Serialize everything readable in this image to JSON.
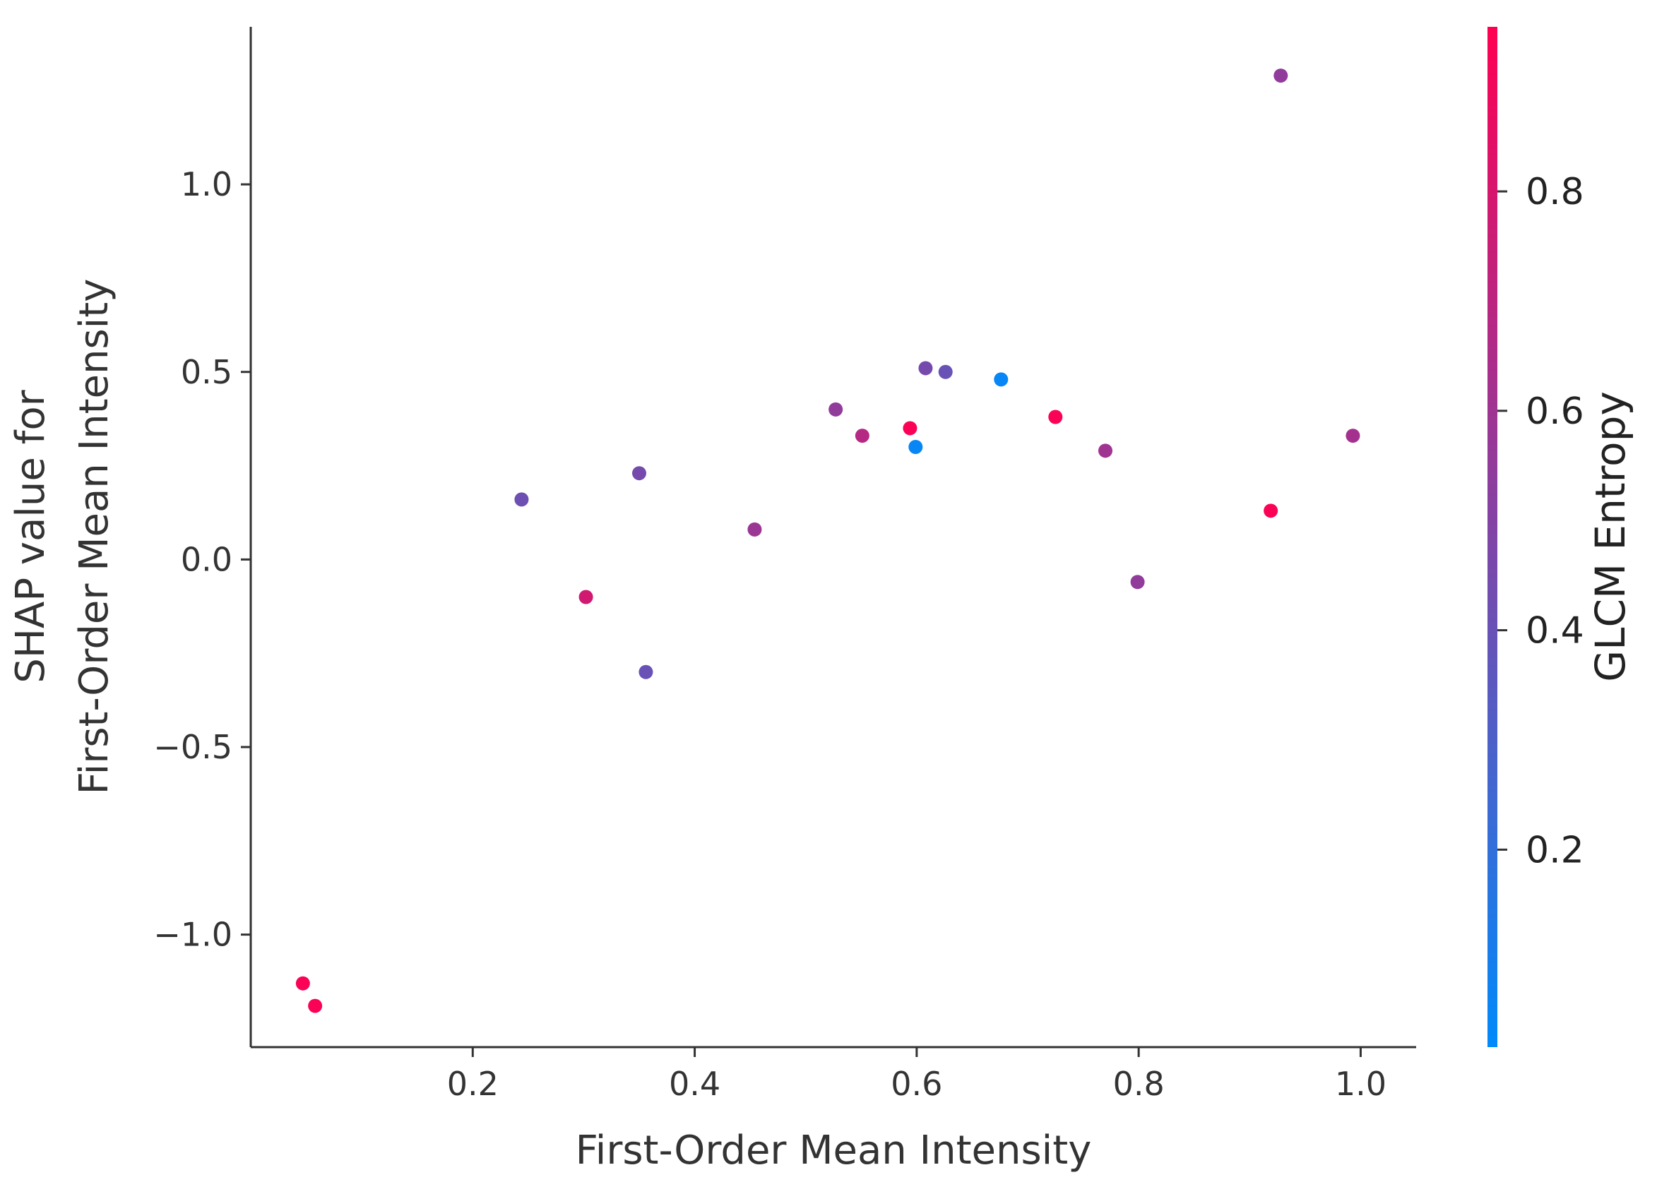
{
  "chart_data": {
    "type": "scatter",
    "xlabel": "First-Order Mean Intensity",
    "ylabel_lines": [
      "SHAP value for",
      "First-Order Mean Intensity"
    ],
    "colorbar_label": "GLCM Entropy",
    "xlim": [
      0.0,
      1.05
    ],
    "ylim": [
      -1.3,
      1.42
    ],
    "x_ticks": [
      0.2,
      0.4,
      0.6,
      0.8,
      1.0
    ],
    "x_tick_labels": [
      "0.2",
      "0.4",
      "0.6",
      "0.8",
      "1.0"
    ],
    "y_ticks": [
      -1.0,
      -0.5,
      0.0,
      0.5,
      1.0
    ],
    "y_tick_labels": [
      "−1.0",
      "−0.5",
      "0.0",
      "0.5",
      "1.0"
    ],
    "color_range": [
      0.02,
      0.95
    ],
    "color_ticks": [
      0.2,
      0.4,
      0.6,
      0.8
    ],
    "color_tick_labels": [
      "0.2",
      "0.4",
      "0.6",
      "0.8"
    ],
    "colormap": [
      "#008afb",
      "#ff0052"
    ],
    "grid": false,
    "points": [
      {
        "x": 0.047,
        "y": -1.13,
        "c": 0.93
      },
      {
        "x": 0.058,
        "y": -1.19,
        "c": 0.93
      },
      {
        "x": 0.244,
        "y": 0.16,
        "c": 0.42
      },
      {
        "x": 0.302,
        "y": -0.1,
        "c": 0.78
      },
      {
        "x": 0.35,
        "y": 0.23,
        "c": 0.45
      },
      {
        "x": 0.356,
        "y": -0.3,
        "c": 0.4
      },
      {
        "x": 0.454,
        "y": 0.08,
        "c": 0.58
      },
      {
        "x": 0.527,
        "y": 0.4,
        "c": 0.55
      },
      {
        "x": 0.551,
        "y": 0.33,
        "c": 0.68
      },
      {
        "x": 0.594,
        "y": 0.35,
        "c": 0.93
      },
      {
        "x": 0.599,
        "y": 0.3,
        "c": 0.05
      },
      {
        "x": 0.608,
        "y": 0.51,
        "c": 0.45
      },
      {
        "x": 0.626,
        "y": 0.5,
        "c": 0.4
      },
      {
        "x": 0.676,
        "y": 0.48,
        "c": 0.05
      },
      {
        "x": 0.725,
        "y": 0.38,
        "c": 0.93
      },
      {
        "x": 0.77,
        "y": 0.29,
        "c": 0.6
      },
      {
        "x": 0.799,
        "y": -0.06,
        "c": 0.55
      },
      {
        "x": 0.919,
        "y": 0.13,
        "c": 0.93
      },
      {
        "x": 0.928,
        "y": 1.29,
        "c": 0.55
      },
      {
        "x": 0.993,
        "y": 0.33,
        "c": 0.62
      }
    ]
  }
}
